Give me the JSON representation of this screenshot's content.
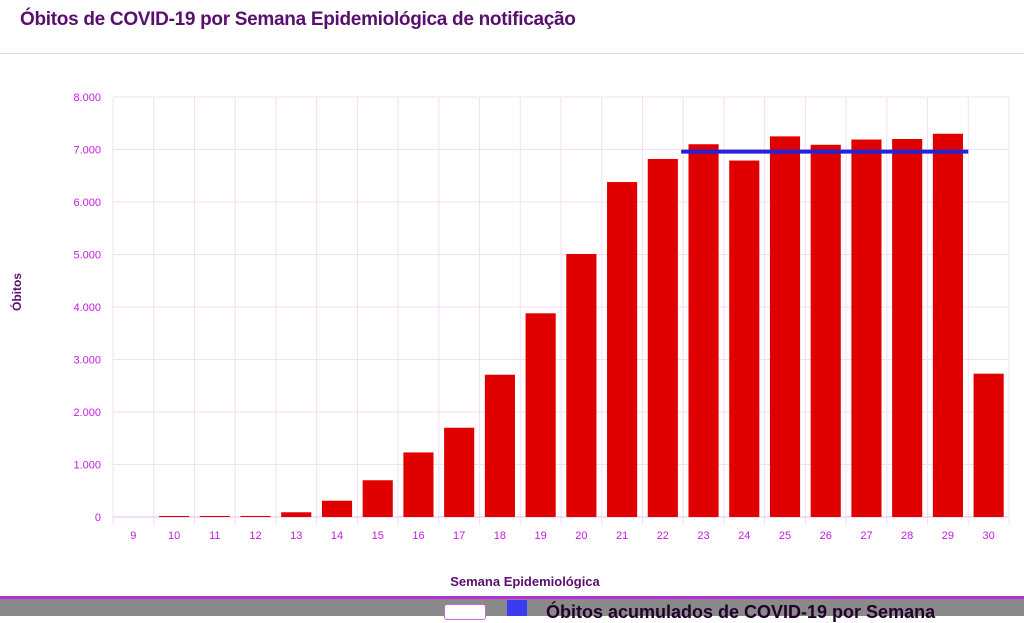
{
  "title": "Óbitos de COVID-19 por Semana Epidemiológica de notificação",
  "next_section_title": "Óbitos acumulados de COVID-19 por Semana",
  "colors": {
    "bar": "#e00000",
    "line": "#2424d6",
    "title": "#5a0f6e",
    "tick": "#c21ee0",
    "grid": "#f3def6"
  },
  "chart_data": {
    "type": "bar",
    "xlabel": "Semana Epidemiológica",
    "ylabel": "Óbitos",
    "ylim": [
      0,
      8000
    ],
    "yticks": [
      0,
      1000,
      2000,
      3000,
      4000,
      5000,
      6000,
      7000,
      8000
    ],
    "ytick_labels": [
      "0",
      "1.000",
      "2.000",
      "3.000",
      "4.000",
      "5.000",
      "6.000",
      "7.000",
      "8.000"
    ],
    "categories": [
      "9",
      "10",
      "11",
      "12",
      "13",
      "14",
      "15",
      "16",
      "17",
      "18",
      "19",
      "20",
      "21",
      "22",
      "23",
      "24",
      "25",
      "26",
      "27",
      "28",
      "29",
      "30"
    ],
    "values": [
      0,
      2,
      5,
      20,
      90,
      310,
      700,
      1230,
      1700,
      2710,
      3880,
      5010,
      6380,
      6820,
      7100,
      6790,
      7250,
      7090,
      7190,
      7200,
      7300,
      2730
    ],
    "reference_line": {
      "value": 6960,
      "from_category": "23",
      "to_category": "29"
    }
  }
}
